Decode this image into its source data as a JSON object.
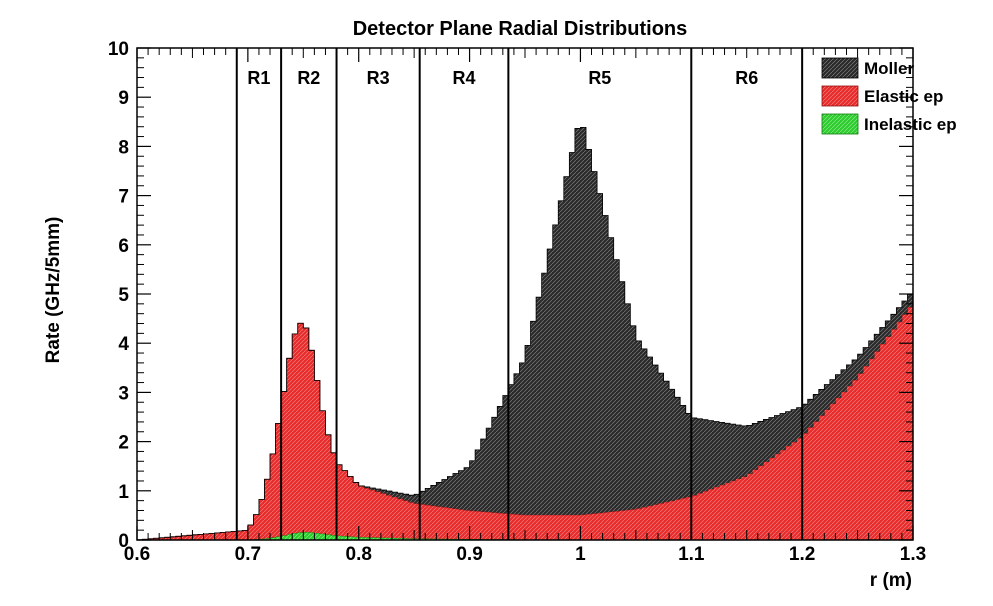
{
  "chart_data": {
    "type": "area",
    "title": "Detector Plane Radial Distributions",
    "xlabel": "r (m)",
    "ylabel": "Rate (GHz/5mm)",
    "xlim": [
      0.6,
      1.3
    ],
    "ylim": [
      0,
      10
    ],
    "xticks": [
      "0.6",
      "0.7",
      "0.8",
      "0.9",
      "1",
      "1.1",
      "1.2",
      "1.3"
    ],
    "yticks": [
      "0",
      "1",
      "2",
      "3",
      "4",
      "5",
      "6",
      "7",
      "8",
      "9",
      "10"
    ],
    "grid": false,
    "legend_position": "top-right",
    "stacked": true,
    "bin_width": 0.005,
    "region_lines": [
      0.69,
      0.73,
      0.78,
      0.855,
      0.935,
      1.1,
      1.2
    ],
    "regions": [
      {
        "label": "R1",
        "x": 0.71
      },
      {
        "label": "R2",
        "x": 0.755
      },
      {
        "label": "R3",
        "x": 0.8175
      },
      {
        "label": "R4",
        "x": 0.895
      },
      {
        "label": "R5",
        "x": 1.0175
      },
      {
        "label": "R6",
        "x": 1.15
      }
    ],
    "x": [
      0.6,
      0.7,
      0.71,
      0.72,
      0.73,
      0.74,
      0.745,
      0.75,
      0.755,
      0.76,
      0.77,
      0.78,
      0.8,
      0.85,
      0.9,
      0.95,
      1.0,
      1.05,
      1.1,
      1.15,
      1.2,
      1.25,
      1.3
    ],
    "series": [
      {
        "name": "Inelastic ep",
        "color": "#2ecc2e",
        "values": [
          0.0,
          0.0,
          0.02,
          0.04,
          0.08,
          0.13,
          0.15,
          0.16,
          0.16,
          0.15,
          0.12,
          0.09,
          0.06,
          0.03,
          0.02,
          0.01,
          0.01,
          0.01,
          0.01,
          0.01,
          0.01,
          0.01,
          0.01
        ]
      },
      {
        "name": "Elastic ep",
        "color": "#e82c2c",
        "values": [
          0.0,
          0.2,
          0.6,
          1.4,
          2.6,
          3.9,
          4.2,
          4.3,
          4.0,
          3.4,
          2.2,
          1.5,
          1.05,
          0.72,
          0.58,
          0.5,
          0.5,
          0.62,
          0.88,
          1.3,
          2.1,
          3.3,
          4.8
        ]
      },
      {
        "name": "Moller",
        "color": "#2b2b2b",
        "values": [
          0.0,
          0.0,
          0.0,
          0.0,
          0.0,
          0.0,
          0.0,
          0.0,
          0.0,
          0.0,
          0.0,
          0.0,
          0.0,
          0.15,
          0.9,
          3.2,
          8.1,
          3.5,
          1.6,
          1.0,
          0.6,
          0.4,
          0.25
        ]
      }
    ],
    "legend_entries": [
      "Moller",
      "Elastic ep",
      "Inelastic ep"
    ]
  }
}
